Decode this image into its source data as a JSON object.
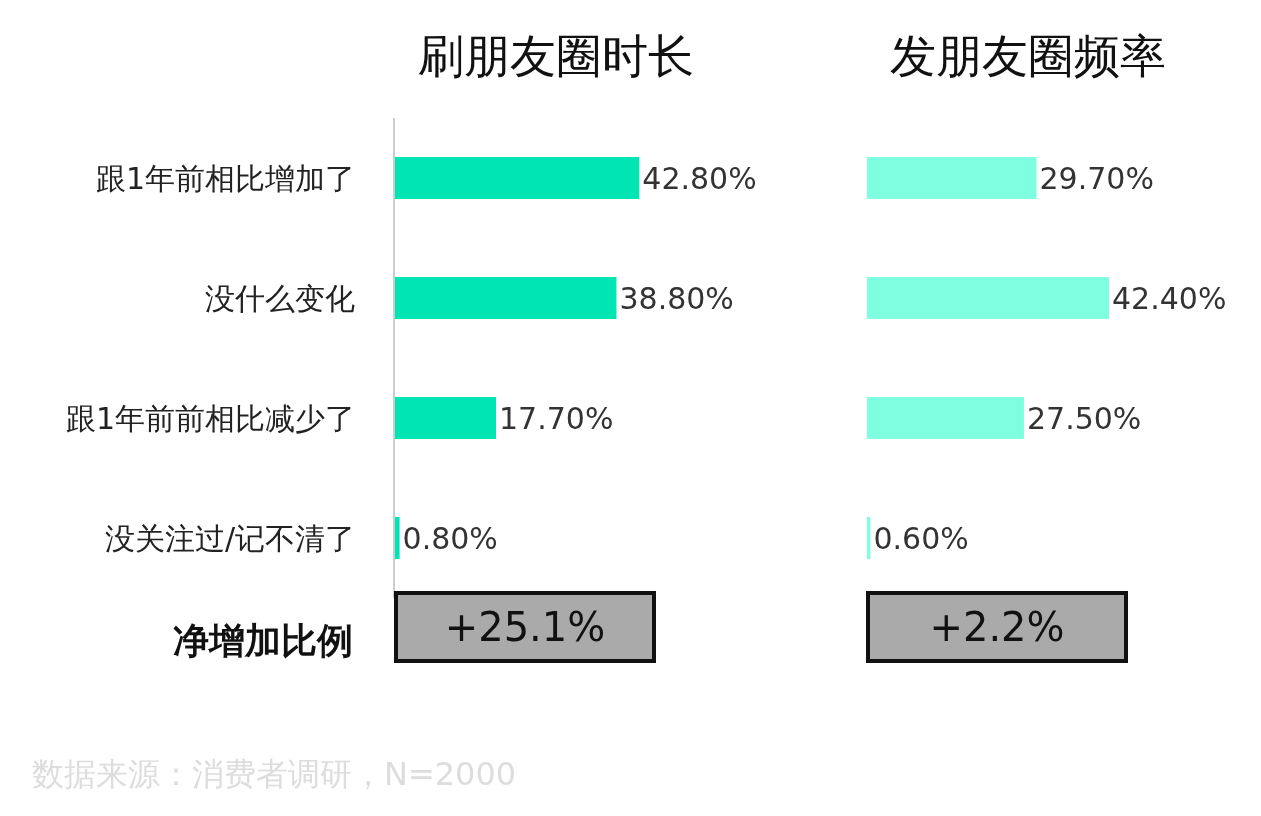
{
  "chart_data": [
    {
      "type": "bar",
      "orientation": "horizontal",
      "title": "刷朋友圈时长",
      "categories": [
        "跟1年前相比增加了",
        "没什么变化",
        "跟1年前前相比减少了",
        "没关注过/记不清了"
      ],
      "values": [
        42.8,
        38.8,
        17.7,
        0.8
      ],
      "value_labels": [
        "42.80%",
        "38.80%",
        "17.70%",
        "0.80%"
      ],
      "color": "#00e5b4",
      "tick_labels": "y",
      "annotations": [
        "+25.1%",
        "净增加比例",
        "数据来源：消费者调研，N=2000"
      ]
    },
    {
      "type": "bar",
      "orientation": "horizontal",
      "title": "发朋友圈频率",
      "categories": [
        null,
        null,
        null,
        null
      ],
      "values": [
        29.7,
        42.4,
        27.5,
        0.6
      ],
      "value_labels": [
        "29.70%",
        "42.40%",
        "27.50%",
        "0.60%"
      ],
      "color": "#80ffe0",
      "tick_labels": false,
      "annotations": [
        "+2.2%"
      ]
    }
  ]
}
